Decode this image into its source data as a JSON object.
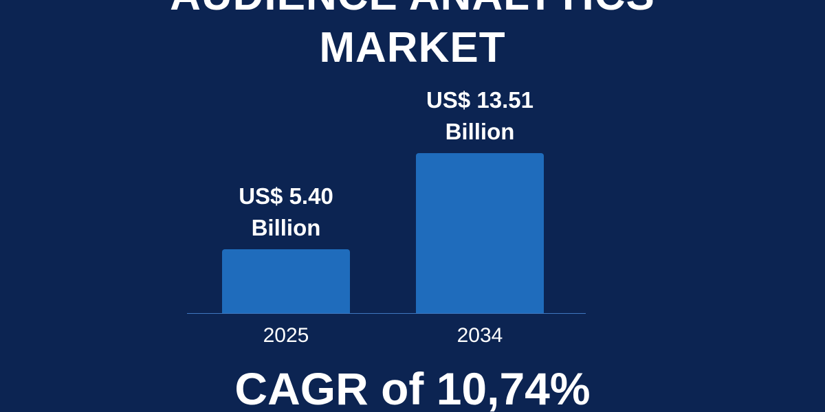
{
  "chart_data": {
    "type": "bar",
    "title": "AUDIENCE ANALYTICS MARKET",
    "categories": [
      "2025",
      "2034"
    ],
    "values": [
      5.4,
      13.51
    ],
    "value_labels": [
      "US$ 5.40 Billion",
      "US$ 13.51 Billion"
    ],
    "color": "#1f6cbc",
    "annotation": "CAGR of 10,74%"
  }
}
